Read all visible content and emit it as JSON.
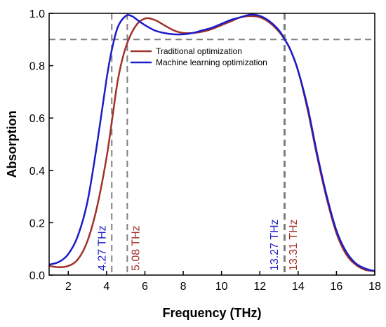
{
  "chart_data": {
    "type": "line",
    "xlabel": "Frequency (THz)",
    "ylabel": "Absorption",
    "xlim": [
      1,
      18
    ],
    "ylim": [
      0,
      1.0
    ],
    "x_ticks": [
      2,
      4,
      6,
      8,
      10,
      12,
      14,
      16,
      18
    ],
    "x_tick_labels": [
      "2",
      "4",
      "6",
      "8",
      "10",
      "12",
      "14",
      "16",
      "18"
    ],
    "y_ticks": [
      0.0,
      0.2,
      0.4,
      0.6,
      0.8,
      1.0
    ],
    "y_tick_labels": [
      "0.0",
      "0.2",
      "0.4",
      "0.6",
      "0.8",
      "1.0"
    ],
    "legend_position": "upper-center",
    "series": [
      {
        "name": "Traditional optimization",
        "color": "#a0322a",
        "points": [
          [
            1.0,
            0.035
          ],
          [
            1.5,
            0.03
          ],
          [
            2.0,
            0.035
          ],
          [
            2.5,
            0.06
          ],
          [
            3.0,
            0.13
          ],
          [
            3.5,
            0.26
          ],
          [
            4.0,
            0.45
          ],
          [
            4.3,
            0.6
          ],
          [
            4.6,
            0.75
          ],
          [
            5.0,
            0.87
          ],
          [
            5.5,
            0.95
          ],
          [
            6.0,
            0.98
          ],
          [
            6.5,
            0.975
          ],
          [
            7.0,
            0.955
          ],
          [
            7.5,
            0.935
          ],
          [
            8.0,
            0.925
          ],
          [
            8.5,
            0.925
          ],
          [
            9.0,
            0.93
          ],
          [
            9.5,
            0.94
          ],
          [
            10.0,
            0.955
          ],
          [
            10.5,
            0.97
          ],
          [
            11.0,
            0.985
          ],
          [
            11.5,
            0.99
          ],
          [
            12.0,
            0.985
          ],
          [
            12.5,
            0.965
          ],
          [
            13.0,
            0.93
          ],
          [
            13.3,
            0.9
          ],
          [
            13.6,
            0.86
          ],
          [
            14.0,
            0.78
          ],
          [
            14.5,
            0.63
          ],
          [
            15.0,
            0.45
          ],
          [
            15.5,
            0.29
          ],
          [
            16.0,
            0.16
          ],
          [
            16.5,
            0.08
          ],
          [
            17.0,
            0.04
          ],
          [
            17.5,
            0.02
          ],
          [
            18.0,
            0.015
          ]
        ]
      },
      {
        "name": "Machine learning optimization",
        "color": "#1c1cc8",
        "points": [
          [
            1.0,
            0.04
          ],
          [
            1.5,
            0.05
          ],
          [
            2.0,
            0.08
          ],
          [
            2.5,
            0.15
          ],
          [
            3.0,
            0.28
          ],
          [
            3.5,
            0.5
          ],
          [
            4.0,
            0.75
          ],
          [
            4.3,
            0.87
          ],
          [
            4.6,
            0.95
          ],
          [
            5.0,
            0.99
          ],
          [
            5.3,
            0.99
          ],
          [
            5.6,
            0.975
          ],
          [
            6.0,
            0.955
          ],
          [
            6.5,
            0.935
          ],
          [
            7.0,
            0.925
          ],
          [
            7.5,
            0.92
          ],
          [
            8.0,
            0.92
          ],
          [
            8.5,
            0.925
          ],
          [
            9.0,
            0.935
          ],
          [
            9.5,
            0.945
          ],
          [
            10.0,
            0.96
          ],
          [
            10.5,
            0.975
          ],
          [
            11.0,
            0.985
          ],
          [
            11.5,
            0.995
          ],
          [
            12.0,
            0.99
          ],
          [
            12.5,
            0.97
          ],
          [
            13.0,
            0.935
          ],
          [
            13.3,
            0.9
          ],
          [
            13.6,
            0.86
          ],
          [
            14.0,
            0.78
          ],
          [
            14.5,
            0.64
          ],
          [
            15.0,
            0.46
          ],
          [
            15.5,
            0.3
          ],
          [
            16.0,
            0.17
          ],
          [
            16.5,
            0.09
          ],
          [
            17.0,
            0.045
          ],
          [
            17.5,
            0.025
          ],
          [
            18.0,
            0.015
          ]
        ]
      }
    ],
    "reference_lines": {
      "horizontal": [
        0.9
      ],
      "vertical": [
        4.27,
        5.08,
        13.27,
        13.31
      ]
    },
    "annotations": [
      {
        "text": "4.27 THz",
        "x": 4.27,
        "color": "#1c1cc8"
      },
      {
        "text": "5.08 THz",
        "x": 5.08,
        "color": "#a0322a"
      },
      {
        "text": "13.27 THz",
        "x": 13.27,
        "color": "#1c1cc8"
      },
      {
        "text": "13.31 THz",
        "x": 13.31,
        "color": "#a0322a"
      }
    ]
  }
}
